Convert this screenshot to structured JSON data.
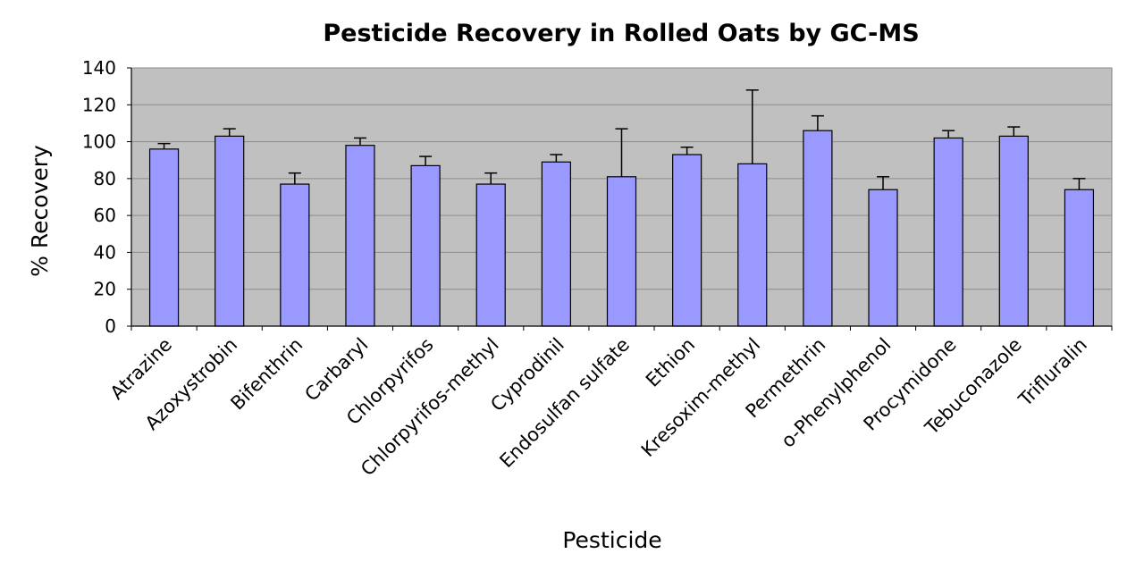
{
  "chart_data": {
    "type": "bar",
    "title": "Pesticide Recovery in Rolled Oats by GC-MS",
    "xlabel": "Pesticide",
    "ylabel": "% Recovery",
    "ylim": [
      0,
      140
    ],
    "yticks": [
      0,
      20,
      40,
      60,
      80,
      100,
      120,
      140
    ],
    "grid": true,
    "legend": "none",
    "categories": [
      "Atrazine",
      "Azoxystrobin",
      "Bifenthrin",
      "Carbaryl",
      "Chlorpyrifos",
      "Chlorpyrifos-methyl",
      "Cyprodinil",
      "Endosulfan sulfate",
      "Ethion",
      "Kresoxim-methyl",
      "Permethrin",
      "o-Phenylphenol",
      "Procymidone",
      "Tebuconazole",
      "Trifluralin"
    ],
    "values": [
      96,
      103,
      77,
      98,
      87,
      77,
      89,
      81,
      93,
      88,
      106,
      74,
      102,
      103,
      74
    ],
    "error": [
      3,
      4,
      6,
      4,
      5,
      6,
      4,
      26,
      4,
      40,
      8,
      7,
      4,
      5,
      6
    ],
    "colors": {
      "bar": "#9999ff",
      "plot_background": "#c0c0c0",
      "grid": "#8c8c8c",
      "outline": "#000000"
    }
  }
}
